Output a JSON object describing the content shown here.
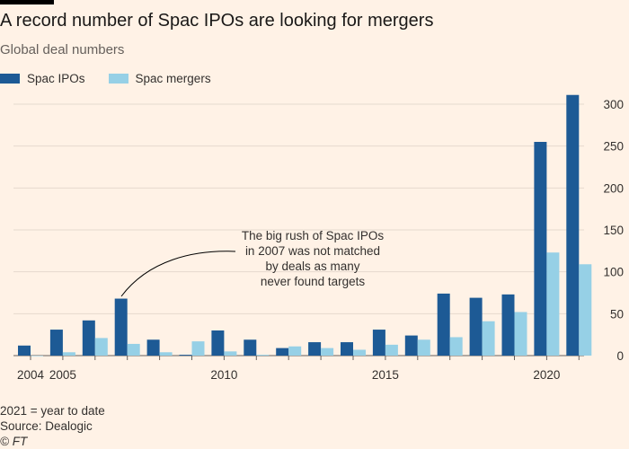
{
  "title": "A record number of Spac IPOs are looking for mergers",
  "subtitle": "Global deal numbers",
  "footnote": "2021 = year to date",
  "source": "Source: Dealogic",
  "credit": "© FT",
  "annotation": {
    "lines": [
      "The big rush of Spac IPOs",
      "in 2007 was not matched",
      "by deals as many",
      "never found targets"
    ]
  },
  "colors": {
    "background": "#fff2e6",
    "spac_ipos": "#1d5a95",
    "spac_mergers": "#96d0e6",
    "gridline": "#e6d9ce",
    "axis": "#66605c"
  },
  "chart_data": {
    "type": "bar",
    "categories": [
      2004,
      2005,
      2006,
      2007,
      2008,
      2009,
      2010,
      2011,
      2012,
      2013,
      2014,
      2015,
      2016,
      2017,
      2018,
      2019,
      2020,
      2021
    ],
    "x_tick_labels": [
      {
        "year": 2004,
        "label": "2004"
      },
      {
        "year": 2005,
        "label": "2005"
      },
      {
        "year": 2010,
        "label": "2010"
      },
      {
        "year": 2015,
        "label": "2015"
      },
      {
        "year": 2020,
        "label": "2020"
      }
    ],
    "series": [
      {
        "name": "Spac IPOs",
        "values": [
          12,
          31,
          42,
          68,
          19,
          1,
          30,
          19,
          9,
          16,
          16,
          31,
          24,
          74,
          69,
          73,
          255,
          311
        ]
      },
      {
        "name": "Spac mergers",
        "values": [
          0,
          4,
          21,
          14,
          4,
          17,
          5,
          1,
          11,
          9,
          7,
          13,
          19,
          22,
          41,
          52,
          123,
          109
        ]
      }
    ],
    "yticks": [
      0,
      50,
      100,
      150,
      200,
      250,
      300
    ],
    "ylim": [
      0,
      300
    ],
    "y_axis_position": "right",
    "grid": true,
    "legend": "top-left",
    "annotated_year": 2007
  }
}
